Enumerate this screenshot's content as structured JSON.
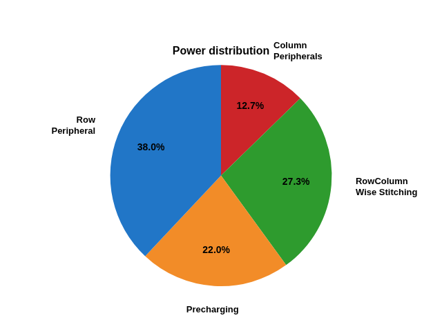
{
  "chart_data": {
    "type": "pie",
    "title": "Power distribution",
    "categories": [
      "Column\nPeripherals",
      "RowColumn\nWise Stitching",
      "Precharging",
      "Row\nPeripheral"
    ],
    "values": [
      12.7,
      27.3,
      22.0,
      38.0
    ],
    "value_labels": [
      "12.7%",
      "27.3%",
      "22.0%",
      "38.0%"
    ],
    "colors": [
      "#CC2529",
      "#2E9B2E",
      "#F28C28",
      "#2176C7"
    ],
    "data_labels": true
  }
}
